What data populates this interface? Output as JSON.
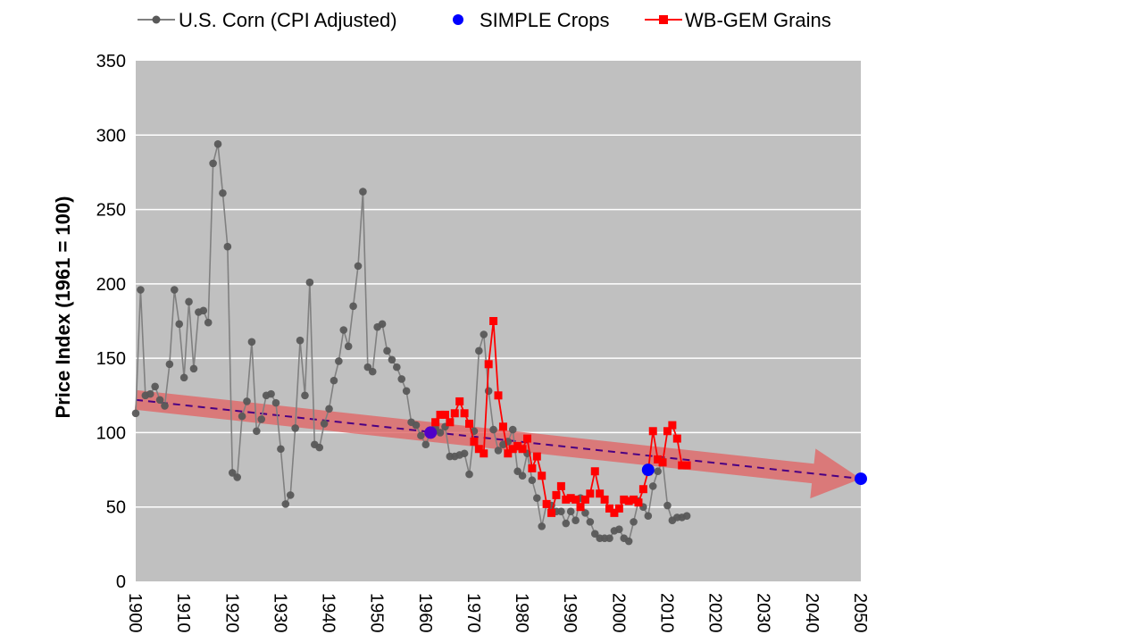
{
  "chart_data": {
    "type": "line",
    "title": "",
    "xlabel": "",
    "ylabel": "Price Index (1961 = 100)",
    "xlim": [
      1900,
      2050
    ],
    "ylim": [
      0,
      350
    ],
    "x_ticks": [
      1900,
      1910,
      1920,
      1930,
      1940,
      1950,
      1960,
      1970,
      1980,
      1990,
      2000,
      2010,
      2020,
      2030,
      2040,
      2050
    ],
    "y_ticks": [
      0,
      50,
      100,
      150,
      200,
      250,
      300,
      350
    ],
    "grid": "horizontal",
    "legend_position": "top",
    "colors": {
      "plot_background": "#c0c0c0",
      "gridline": "#ffffff",
      "corn": "#808080",
      "corn_marker": "#595959",
      "simple": "#0000ff",
      "wbgem": "#ff0000",
      "trend_band": "#e06666",
      "trend_line": "#4b0082"
    },
    "series": [
      {
        "name": "U.S. Corn (CPI Adjusted)",
        "marker": "circle",
        "x": [
          1900,
          1901,
          1902,
          1903,
          1904,
          1905,
          1906,
          1907,
          1908,
          1909,
          1910,
          1911,
          1912,
          1913,
          1914,
          1915,
          1916,
          1917,
          1918,
          1919,
          1920,
          1921,
          1922,
          1923,
          1924,
          1925,
          1926,
          1927,
          1928,
          1929,
          1930,
          1931,
          1932,
          1933,
          1934,
          1935,
          1936,
          1937,
          1938,
          1939,
          1940,
          1941,
          1942,
          1943,
          1944,
          1945,
          1946,
          1947,
          1948,
          1949,
          1950,
          1951,
          1952,
          1953,
          1954,
          1955,
          1956,
          1957,
          1958,
          1959,
          1960,
          1961,
          1962,
          1963,
          1964,
          1965,
          1966,
          1967,
          1968,
          1969,
          1970,
          1971,
          1972,
          1973,
          1974,
          1975,
          1976,
          1977,
          1978,
          1979,
          1980,
          1981,
          1982,
          1983,
          1984,
          1985,
          1986,
          1987,
          1988,
          1989,
          1990,
          1991,
          1992,
          1993,
          1994,
          1995,
          1996,
          1997,
          1998,
          1999,
          2000,
          2001,
          2002,
          2003,
          2004,
          2005,
          2006,
          2007,
          2008,
          2009,
          2010,
          2011,
          2012,
          2013,
          2014
        ],
        "values": [
          113,
          196,
          125,
          126,
          131,
          122,
          118,
          146,
          196,
          173,
          137,
          188,
          143,
          181,
          182,
          174,
          281,
          294,
          261,
          225,
          73,
          70,
          111,
          121,
          161,
          101,
          109,
          125,
          126,
          120,
          89,
          52,
          58,
          103,
          162,
          125,
          201,
          92,
          90,
          106,
          116,
          135,
          148,
          169,
          158,
          185,
          212,
          262,
          144,
          141,
          171,
          173,
          155,
          149,
          144,
          136,
          128,
          107,
          105,
          98,
          92,
          100,
          103,
          100,
          104,
          84,
          84,
          85,
          86,
          72,
          101,
          155,
          166,
          128,
          102,
          88,
          92,
          94,
          102,
          74,
          71,
          86,
          68,
          56,
          37,
          52,
          51,
          47,
          47,
          39,
          47,
          41,
          56,
          46,
          40,
          32,
          29,
          29,
          29,
          34,
          35,
          29,
          27,
          40,
          54,
          50,
          44,
          64,
          74,
          81,
          51,
          41,
          43,
          43,
          44
        ]
      },
      {
        "name": "SIMPLE Crops",
        "marker": "circle",
        "line": false,
        "x": [
          1961,
          2006,
          2050
        ],
        "values": [
          100,
          75,
          69
        ]
      },
      {
        "name": "WB-GEM Grains",
        "marker": "square",
        "x": [
          1962,
          1963,
          1964,
          1965,
          1966,
          1967,
          1968,
          1969,
          1970,
          1971,
          1972,
          1973,
          1974,
          1975,
          1976,
          1977,
          1978,
          1979,
          1980,
          1981,
          1982,
          1983,
          1984,
          1985,
          1986,
          1987,
          1988,
          1989,
          1990,
          1991,
          1992,
          1993,
          1994,
          1995,
          1996,
          1997,
          1998,
          1999,
          2000,
          2001,
          2002,
          2003,
          2004,
          2005,
          2006,
          2007,
          2008,
          2009,
          2010,
          2011,
          2012,
          2013,
          2014
        ],
        "values": [
          107,
          112,
          112,
          107,
          113,
          121,
          113,
          106,
          94,
          89,
          86,
          146,
          175,
          125,
          104,
          86,
          89,
          91,
          89,
          96,
          76,
          84,
          71,
          52,
          46,
          58,
          64,
          55,
          56,
          55,
          50,
          55,
          59,
          74,
          59,
          55,
          49,
          46,
          49,
          55,
          54,
          55,
          53,
          62,
          74,
          101,
          82,
          80,
          101,
          105,
          96,
          78,
          78
        ]
      }
    ],
    "trend": {
      "description": "declining trend arrow from 1900 to 2050",
      "start": {
        "x": 1900,
        "y": 122
      },
      "end": {
        "x": 2050,
        "y": 69
      }
    }
  }
}
